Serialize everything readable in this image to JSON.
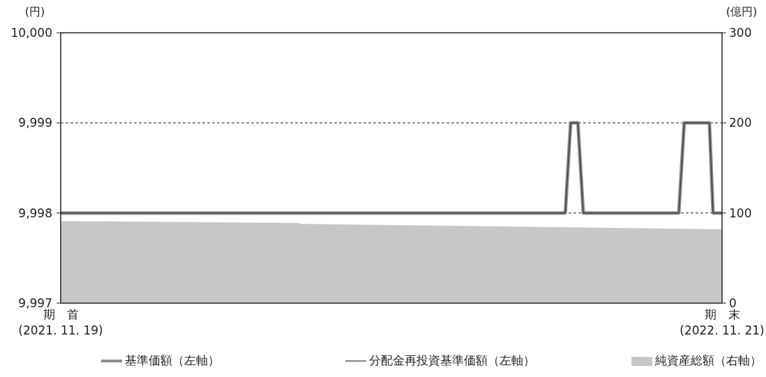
{
  "chart_data": {
    "type": "line",
    "ylabel": "(円)",
    "y2label": "(億円)",
    "xlim": [
      "2021-11-19",
      "2022-11-21"
    ],
    "xticks": [
      {
        "value": "2021-11-19",
        "label": "期　首\n(2021. 11. 19)"
      },
      {
        "value": "2022-11-21",
        "label": "期　末\n(2022. 11. 21)"
      }
    ],
    "ylim": [
      9997,
      10000
    ],
    "yticks": [
      {
        "value": 9997,
        "label": "9,997"
      },
      {
        "value": 9998,
        "label": "9,998"
      },
      {
        "value": 9999,
        "label": "9,999"
      },
      {
        "value": 10000,
        "label": "10,000"
      }
    ],
    "y2lim": [
      0,
      300
    ],
    "y2ticks": [
      0,
      100,
      200,
      300
    ],
    "grid": "y",
    "legend": "bottom",
    "series": [
      {
        "name": "純資産総額（右軸）",
        "type": "area",
        "axis": "y2",
        "color": "#c6c7c9",
        "x": [
          "2021-11-19",
          "2022-03-31",
          "2022-04-01",
          "2022-11-21"
        ],
        "values": [
          91,
          89,
          88,
          82
        ]
      },
      {
        "name": "基準価額（左軸）",
        "color": "#8c8c8c",
        "x": [
          "2021-11-19",
          "2022-08-26",
          "2022-08-29",
          "2022-09-02",
          "2022-09-05",
          "2022-10-28",
          "2022-10-31",
          "2022-11-14",
          "2022-11-16",
          "2022-11-21"
        ],
        "values": [
          9998,
          9998,
          9999,
          9999,
          9998,
          9998,
          9999,
          9999,
          9998,
          9998
        ]
      },
      {
        "name": "分配金再投資基準価額（左軸）",
        "color": "#333333",
        "x": [
          "2021-11-19",
          "2022-08-26",
          "2022-08-29",
          "2022-09-02",
          "2022-09-05",
          "2022-10-28",
          "2022-10-31",
          "2022-11-14",
          "2022-11-16",
          "2022-11-21"
        ],
        "values": [
          9998,
          9998,
          9999,
          9999,
          9998,
          9998,
          9999,
          9999,
          9998,
          9998
        ]
      }
    ]
  }
}
